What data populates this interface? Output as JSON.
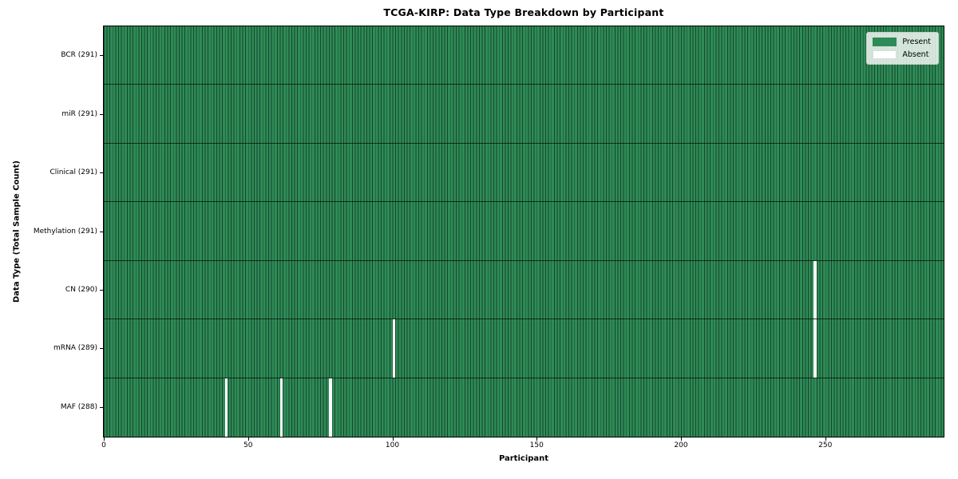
{
  "colors": {
    "present": "#2e8b57",
    "absent": "#ffffff",
    "cell_edge": "rgba(0,0,0,0.5)",
    "row_edge": "rgba(0,0,0,0.65)",
    "figure_bg": "#ffffff",
    "legend_bg": "rgba(255,255,255,0.8)",
    "legend_border": "#cccccc"
  },
  "chart_data": {
    "type": "heatmap",
    "title": "TCGA-KIRP: Data Type Breakdown by Participant",
    "xlabel": "Participant",
    "ylabel": "Data Type (Total Sample Count)",
    "n_participants": 291,
    "xlim": [
      0,
      291
    ],
    "x_ticks": [
      0,
      50,
      100,
      150,
      200,
      250
    ],
    "grid": false,
    "legend_position": "upper right",
    "cell_values": "1 = present (green), 0 = absent (white)",
    "rows": [
      {
        "name": "BCR",
        "label": "BCR (291)",
        "total": 291,
        "absent_participants": []
      },
      {
        "name": "miR",
        "label": "miR (291)",
        "total": 291,
        "absent_participants": []
      },
      {
        "name": "Clinical",
        "label": "Clinical (291)",
        "total": 291,
        "absent_participants": []
      },
      {
        "name": "Methylation",
        "label": "Methylation (291)",
        "total": 291,
        "absent_participants": []
      },
      {
        "name": "CN",
        "label": "CN (290)",
        "total": 290,
        "absent_participants": [
          246
        ]
      },
      {
        "name": "mRNA",
        "label": "mRNA (289)",
        "total": 289,
        "absent_participants": [
          100,
          246
        ]
      },
      {
        "name": "MAF",
        "label": "MAF (288)",
        "total": 288,
        "absent_participants": [
          42,
          61,
          78
        ]
      }
    ],
    "legend": [
      {
        "label": "Present",
        "color": "#2e8b57"
      },
      {
        "label": "Absent",
        "color": "#ffffff"
      }
    ]
  }
}
